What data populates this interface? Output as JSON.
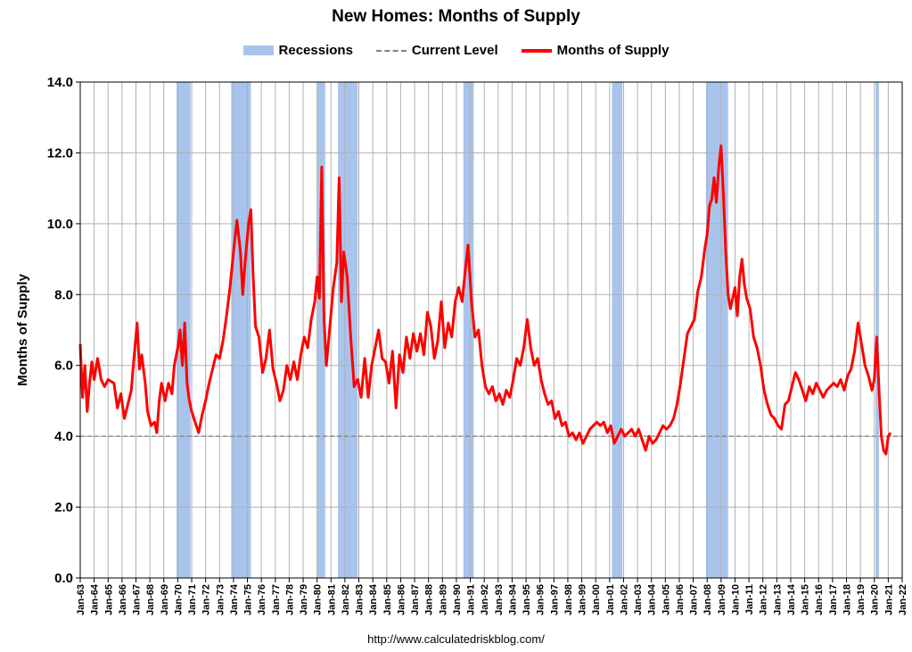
{
  "colors": {
    "recession": "#a9c4ec",
    "supply": "#ff0000",
    "current": "#808080",
    "grid": "#b0b0b0",
    "axis": "#000000"
  },
  "legend": {
    "recessions": "Recessions",
    "current": "Current Level",
    "supply": "Months of Supply"
  },
  "source": "http://www.calculatedriskblog.com/",
  "chart_data": {
    "type": "line",
    "title": "New Homes: Months of Supply",
    "xlabel": "",
    "ylabel": "Months of Supply",
    "ylim": [
      0,
      14
    ],
    "yticks": [
      "0.0",
      "2.0",
      "4.0",
      "6.0",
      "8.0",
      "10.0",
      "12.0",
      "14.0"
    ],
    "x_range": [
      "1963-01",
      "2022-01"
    ],
    "xticks": [
      "Jan-63",
      "Jan-64",
      "Jan-65",
      "Jan-66",
      "Jan-67",
      "Jan-68",
      "Jan-69",
      "Jan-70",
      "Jan-71",
      "Jan-72",
      "Jan-73",
      "Jan-74",
      "Jan-75",
      "Jan-76",
      "Jan-77",
      "Jan-78",
      "Jan-79",
      "Jan-80",
      "Jan-81",
      "Jan-82",
      "Jan-83",
      "Jan-84",
      "Jan-85",
      "Jan-86",
      "Jan-87",
      "Jan-88",
      "Jan-89",
      "Jan-90",
      "Jan-91",
      "Jan-92",
      "Jan-93",
      "Jan-94",
      "Jan-95",
      "Jan-96",
      "Jan-97",
      "Jan-98",
      "Jan-99",
      "Jan-00",
      "Jan-01",
      "Jan-02",
      "Jan-03",
      "Jan-04",
      "Jan-05",
      "Jan-06",
      "Jan-07",
      "Jan-08",
      "Jan-09",
      "Jan-10",
      "Jan-11",
      "Jan-12",
      "Jan-13",
      "Jan-14",
      "Jan-15",
      "Jan-16",
      "Jan-17",
      "Jan-18",
      "Jan-19",
      "Jan-20",
      "Jan-21",
      "Jan-22"
    ],
    "grid": true,
    "legend_position": "top",
    "current_level": 4.0,
    "recessions": [
      [
        "1969-12",
        "1970-11"
      ],
      [
        "1973-11",
        "1975-03"
      ],
      [
        "1980-01",
        "1980-07"
      ],
      [
        "1981-07",
        "1982-11"
      ],
      [
        "1990-07",
        "1991-03"
      ],
      [
        "2001-03",
        "2001-11"
      ],
      [
        "2007-12",
        "2009-06"
      ],
      [
        "2020-02",
        "2020-04"
      ]
    ],
    "series": [
      {
        "name": "Months of Supply",
        "points": [
          [
            "1963-01",
            6.6
          ],
          [
            "1963-03",
            5.1
          ],
          [
            "1963-05",
            6.0
          ],
          [
            "1963-07",
            4.7
          ],
          [
            "1963-09",
            5.5
          ],
          [
            "1963-11",
            6.1
          ],
          [
            "1964-01",
            5.6
          ],
          [
            "1964-04",
            6.2
          ],
          [
            "1964-07",
            5.6
          ],
          [
            "1964-10",
            5.4
          ],
          [
            "1965-01",
            5.6
          ],
          [
            "1965-06",
            5.5
          ],
          [
            "1965-09",
            4.8
          ],
          [
            "1965-12",
            5.2
          ],
          [
            "1966-03",
            4.5
          ],
          [
            "1966-06",
            4.9
          ],
          [
            "1966-09",
            5.3
          ],
          [
            "1966-11",
            6.1
          ],
          [
            "1967-02",
            7.2
          ],
          [
            "1967-04",
            5.9
          ],
          [
            "1967-06",
            6.3
          ],
          [
            "1967-09",
            5.5
          ],
          [
            "1967-11",
            4.7
          ],
          [
            "1968-02",
            4.3
          ],
          [
            "1968-05",
            4.4
          ],
          [
            "1968-07",
            4.1
          ],
          [
            "1968-09",
            5.0
          ],
          [
            "1968-11",
            5.5
          ],
          [
            "1969-02",
            5.0
          ],
          [
            "1969-05",
            5.5
          ],
          [
            "1969-08",
            5.2
          ],
          [
            "1969-10",
            6.0
          ],
          [
            "1970-01",
            6.5
          ],
          [
            "1970-03",
            7.0
          ],
          [
            "1970-05",
            6.0
          ],
          [
            "1970-07",
            7.2
          ],
          [
            "1970-09",
            5.5
          ],
          [
            "1970-11",
            5.0
          ],
          [
            "1971-01",
            4.7
          ],
          [
            "1971-04",
            4.4
          ],
          [
            "1971-07",
            4.1
          ],
          [
            "1971-10",
            4.6
          ],
          [
            "1972-01",
            5.0
          ],
          [
            "1972-04",
            5.5
          ],
          [
            "1972-07",
            5.9
          ],
          [
            "1972-10",
            6.3
          ],
          [
            "1973-01",
            6.2
          ],
          [
            "1973-04",
            6.7
          ],
          [
            "1973-07",
            7.4
          ],
          [
            "1973-10",
            8.2
          ],
          [
            "1974-01",
            9.2
          ],
          [
            "1974-04",
            10.1
          ],
          [
            "1974-07",
            9.2
          ],
          [
            "1974-09",
            8.0
          ],
          [
            "1974-11",
            8.9
          ],
          [
            "1975-02",
            10.0
          ],
          [
            "1975-04",
            10.4
          ],
          [
            "1975-06",
            8.5
          ],
          [
            "1975-08",
            7.1
          ],
          [
            "1975-11",
            6.8
          ],
          [
            "1976-02",
            5.8
          ],
          [
            "1976-05",
            6.2
          ],
          [
            "1976-08",
            7.0
          ],
          [
            "1976-11",
            5.9
          ],
          [
            "1977-02",
            5.5
          ],
          [
            "1977-05",
            5.0
          ],
          [
            "1977-08",
            5.3
          ],
          [
            "1977-11",
            6.0
          ],
          [
            "1978-02",
            5.6
          ],
          [
            "1978-05",
            6.1
          ],
          [
            "1978-08",
            5.6
          ],
          [
            "1978-11",
            6.3
          ],
          [
            "1979-02",
            6.8
          ],
          [
            "1979-05",
            6.5
          ],
          [
            "1979-08",
            7.3
          ],
          [
            "1979-11",
            7.8
          ],
          [
            "1980-01",
            8.5
          ],
          [
            "1980-03",
            7.9
          ],
          [
            "1980-05",
            11.6
          ],
          [
            "1980-07",
            7.3
          ],
          [
            "1980-09",
            6.0
          ],
          [
            "1980-12",
            7.1
          ],
          [
            "1981-03",
            8.2
          ],
          [
            "1981-06",
            8.9
          ],
          [
            "1981-08",
            11.3
          ],
          [
            "1981-10",
            7.8
          ],
          [
            "1981-12",
            9.2
          ],
          [
            "1982-03",
            8.5
          ],
          [
            "1982-06",
            6.8
          ],
          [
            "1982-09",
            5.4
          ],
          [
            "1982-12",
            5.6
          ],
          [
            "1983-03",
            5.1
          ],
          [
            "1983-06",
            6.2
          ],
          [
            "1983-09",
            5.1
          ],
          [
            "1983-12",
            6.0
          ],
          [
            "1984-03",
            6.5
          ],
          [
            "1984-06",
            7.0
          ],
          [
            "1984-09",
            6.2
          ],
          [
            "1984-12",
            6.1
          ],
          [
            "1985-03",
            5.5
          ],
          [
            "1985-06",
            6.4
          ],
          [
            "1985-09",
            4.8
          ],
          [
            "1985-12",
            6.3
          ],
          [
            "1986-03",
            5.8
          ],
          [
            "1986-06",
            6.8
          ],
          [
            "1986-09",
            6.2
          ],
          [
            "1986-12",
            6.9
          ],
          [
            "1987-03",
            6.4
          ],
          [
            "1987-06",
            6.9
          ],
          [
            "1987-09",
            6.3
          ],
          [
            "1987-12",
            7.5
          ],
          [
            "1988-03",
            7.1
          ],
          [
            "1988-06",
            6.2
          ],
          [
            "1988-09",
            6.7
          ],
          [
            "1988-12",
            7.8
          ],
          [
            "1989-03",
            6.5
          ],
          [
            "1989-06",
            7.2
          ],
          [
            "1989-09",
            6.8
          ],
          [
            "1989-12",
            7.8
          ],
          [
            "1990-03",
            8.2
          ],
          [
            "1990-06",
            7.8
          ],
          [
            "1990-09",
            8.8
          ],
          [
            "1990-11",
            9.4
          ],
          [
            "1991-02",
            7.8
          ],
          [
            "1991-05",
            6.8
          ],
          [
            "1991-08",
            7.0
          ],
          [
            "1991-11",
            6.0
          ],
          [
            "1992-02",
            5.4
          ],
          [
            "1992-05",
            5.2
          ],
          [
            "1992-08",
            5.4
          ],
          [
            "1992-11",
            5.0
          ],
          [
            "1993-02",
            5.2
          ],
          [
            "1993-05",
            4.9
          ],
          [
            "1993-08",
            5.3
          ],
          [
            "1993-11",
            5.1
          ],
          [
            "1994-02",
            5.6
          ],
          [
            "1994-05",
            6.2
          ],
          [
            "1994-08",
            6.0
          ],
          [
            "1994-11",
            6.5
          ],
          [
            "1995-02",
            7.3
          ],
          [
            "1995-05",
            6.5
          ],
          [
            "1995-08",
            6.0
          ],
          [
            "1995-11",
            6.2
          ],
          [
            "1996-02",
            5.6
          ],
          [
            "1996-05",
            5.2
          ],
          [
            "1996-08",
            4.9
          ],
          [
            "1996-11",
            5.0
          ],
          [
            "1997-02",
            4.5
          ],
          [
            "1997-05",
            4.7
          ],
          [
            "1997-08",
            4.3
          ],
          [
            "1997-11",
            4.4
          ],
          [
            "1998-02",
            4.0
          ],
          [
            "1998-05",
            4.1
          ],
          [
            "1998-08",
            3.9
          ],
          [
            "1998-11",
            4.1
          ],
          [
            "1999-02",
            3.8
          ],
          [
            "1999-05",
            4.0
          ],
          [
            "1999-08",
            4.2
          ],
          [
            "1999-11",
            4.3
          ],
          [
            "2000-02",
            4.4
          ],
          [
            "2000-05",
            4.3
          ],
          [
            "2000-08",
            4.4
          ],
          [
            "2000-11",
            4.1
          ],
          [
            "2001-02",
            4.3
          ],
          [
            "2001-05",
            3.8
          ],
          [
            "2001-08",
            4.0
          ],
          [
            "2001-11",
            4.2
          ],
          [
            "2002-02",
            4.0
          ],
          [
            "2002-05",
            4.1
          ],
          [
            "2002-08",
            4.2
          ],
          [
            "2002-11",
            4.0
          ],
          [
            "2003-02",
            4.2
          ],
          [
            "2003-05",
            3.9
          ],
          [
            "2003-08",
            3.6
          ],
          [
            "2003-11",
            4.0
          ],
          [
            "2004-02",
            3.8
          ],
          [
            "2004-05",
            3.9
          ],
          [
            "2004-08",
            4.1
          ],
          [
            "2004-11",
            4.3
          ],
          [
            "2005-02",
            4.2
          ],
          [
            "2005-05",
            4.3
          ],
          [
            "2005-08",
            4.5
          ],
          [
            "2005-11",
            4.9
          ],
          [
            "2006-02",
            5.5
          ],
          [
            "2006-05",
            6.2
          ],
          [
            "2006-08",
            6.9
          ],
          [
            "2006-11",
            7.1
          ],
          [
            "2007-02",
            7.3
          ],
          [
            "2007-05",
            8.1
          ],
          [
            "2007-08",
            8.5
          ],
          [
            "2007-11",
            9.3
          ],
          [
            "2008-01",
            9.7
          ],
          [
            "2008-03",
            10.5
          ],
          [
            "2008-05",
            10.7
          ],
          [
            "2008-07",
            11.3
          ],
          [
            "2008-09",
            10.6
          ],
          [
            "2008-11",
            11.6
          ],
          [
            "2009-01",
            12.2
          ],
          [
            "2009-03",
            10.8
          ],
          [
            "2009-05",
            9.2
          ],
          [
            "2009-07",
            8.0
          ],
          [
            "2009-09",
            7.6
          ],
          [
            "2009-11",
            7.9
          ],
          [
            "2010-01",
            8.2
          ],
          [
            "2010-03",
            7.4
          ],
          [
            "2010-05",
            8.5
          ],
          [
            "2010-07",
            9.0
          ],
          [
            "2010-09",
            8.3
          ],
          [
            "2010-11",
            7.9
          ],
          [
            "2011-02",
            7.6
          ],
          [
            "2011-05",
            6.8
          ],
          [
            "2011-08",
            6.5
          ],
          [
            "2011-11",
            6.0
          ],
          [
            "2012-02",
            5.3
          ],
          [
            "2012-05",
            4.9
          ],
          [
            "2012-08",
            4.6
          ],
          [
            "2012-11",
            4.5
          ],
          [
            "2013-02",
            4.3
          ],
          [
            "2013-05",
            4.2
          ],
          [
            "2013-08",
            4.9
          ],
          [
            "2013-11",
            5.0
          ],
          [
            "2014-02",
            5.4
          ],
          [
            "2014-05",
            5.8
          ],
          [
            "2014-08",
            5.6
          ],
          [
            "2014-11",
            5.3
          ],
          [
            "2015-02",
            5.0
          ],
          [
            "2015-05",
            5.4
          ],
          [
            "2015-08",
            5.2
          ],
          [
            "2015-11",
            5.5
          ],
          [
            "2016-02",
            5.3
          ],
          [
            "2016-05",
            5.1
          ],
          [
            "2016-08",
            5.3
          ],
          [
            "2016-11",
            5.4
          ],
          [
            "2017-02",
            5.5
          ],
          [
            "2017-05",
            5.4
          ],
          [
            "2017-08",
            5.6
          ],
          [
            "2017-11",
            5.3
          ],
          [
            "2018-02",
            5.7
          ],
          [
            "2018-05",
            5.9
          ],
          [
            "2018-08",
            6.4
          ],
          [
            "2018-11",
            7.2
          ],
          [
            "2019-02",
            6.6
          ],
          [
            "2019-05",
            6.0
          ],
          [
            "2019-08",
            5.7
          ],
          [
            "2019-11",
            5.3
          ],
          [
            "2020-01",
            5.6
          ],
          [
            "2020-03",
            6.8
          ],
          [
            "2020-05",
            5.3
          ],
          [
            "2020-07",
            4.0
          ],
          [
            "2020-09",
            3.6
          ],
          [
            "2020-11",
            3.5
          ],
          [
            "2021-01",
            4.0
          ],
          [
            "2021-03",
            4.1
          ]
        ]
      }
    ]
  }
}
